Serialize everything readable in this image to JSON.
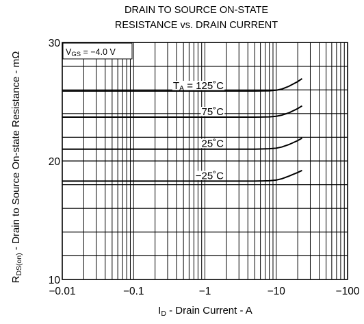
{
  "chart_data": {
    "type": "line",
    "title_lines": [
      "DRAIN TO SOURCE ON-STATE",
      "RESISTANCE vs. DRAIN CURRENT"
    ],
    "xlabel": {
      "symbol": "I",
      "subscript": "D",
      "text": " - Drain Current - A"
    },
    "ylabel": {
      "symbol": "R",
      "subscript": "DS(on)",
      "text": " - Drain to Source On-state Resistance - mΩ"
    },
    "x_scale": "log",
    "x_magnitude_range": [
      0.01,
      100
    ],
    "y_scale": "linear",
    "ylim": [
      10,
      30
    ],
    "grid": true,
    "x_ticks": [
      {
        "value": 0.01,
        "label": "−0.01"
      },
      {
        "value": 0.1,
        "label": "−0.1"
      },
      {
        "value": 1,
        "label": "−1"
      },
      {
        "value": 10,
        "label": "−10"
      },
      {
        "value": 100,
        "label": "−100"
      }
    ],
    "y_ticks": [
      {
        "value": 30,
        "label": "30"
      },
      {
        "value": 20,
        "label": "20"
      },
      {
        "value": 10,
        "label": "10"
      }
    ],
    "condition": {
      "symbol": "V",
      "subscript": "GS",
      "text": " = −4.0 V"
    },
    "series": [
      {
        "name_prefix": "T",
        "name_subscript": "A",
        "name": " = 125˚C",
        "x": [
          -0.01,
          -0.1,
          -1,
          -5,
          -8,
          -10,
          -12,
          -15,
          -20,
          -23
        ],
        "values": [
          25.9,
          25.9,
          25.9,
          25.9,
          25.92,
          25.97,
          26.07,
          26.3,
          26.7,
          26.95
        ]
      },
      {
        "name": "75˚C",
        "x": [
          -0.01,
          -0.1,
          -1,
          -5,
          -8,
          -10,
          -12,
          -15,
          -20,
          -23
        ],
        "values": [
          23.7,
          23.7,
          23.7,
          23.7,
          23.72,
          23.77,
          23.87,
          24.06,
          24.42,
          24.65
        ]
      },
      {
        "name": "25˚C",
        "x": [
          -0.01,
          -0.1,
          -1,
          -5,
          -8,
          -10,
          -12,
          -15,
          -20,
          -23
        ],
        "values": [
          21.0,
          21.0,
          21.0,
          21.0,
          21.03,
          21.08,
          21.18,
          21.38,
          21.72,
          21.93
        ]
      },
      {
        "name": "−25˚C",
        "x": [
          -0.01,
          -0.1,
          -1,
          -5,
          -8,
          -10,
          -12,
          -15,
          -20,
          -23
        ],
        "values": [
          18.3,
          18.3,
          18.3,
          18.3,
          18.33,
          18.39,
          18.5,
          18.72,
          19.03,
          19.2
        ]
      }
    ]
  }
}
